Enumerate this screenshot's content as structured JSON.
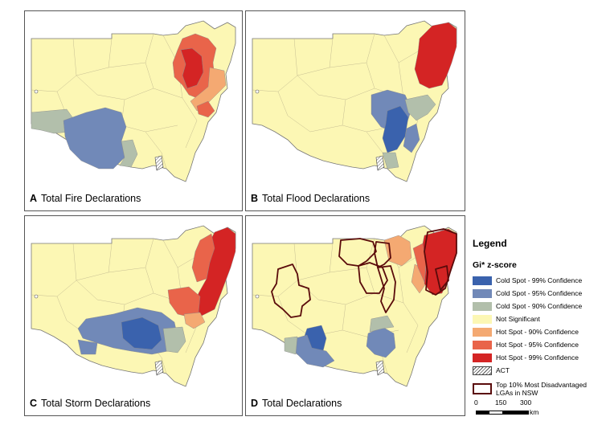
{
  "panels": [
    {
      "letter": "A",
      "caption": "Total Fire Declarations"
    },
    {
      "letter": "B",
      "caption": "Total Flood Declarations"
    },
    {
      "letter": "C",
      "caption": "Total Storm Declarations"
    },
    {
      "letter": "D",
      "caption": "Total Declarations"
    }
  ],
  "legend": {
    "title": "Legend",
    "subtitle": "Gi* z-score",
    "items": [
      {
        "label": "Cold Spot - 99% Confidence",
        "color": "#3a62ad"
      },
      {
        "label": "Cold Spot - 95% Confidence",
        "color": "#7189b8"
      },
      {
        "label": "Cold Spot - 90% Confidence",
        "color": "#b2bfab"
      },
      {
        "label": "Not Significant",
        "color": "#fcf7b4"
      },
      {
        "label": "Hot Spot - 90% Confidence",
        "color": "#f4a972"
      },
      {
        "label": "Hot Spot - 95% Confidence",
        "color": "#e9644a"
      },
      {
        "label": "Hot Spot - 99% Confidence",
        "color": "#d42424"
      },
      {
        "label": "ACT",
        "color": "hatch"
      },
      {
        "label": "Top 10% Most Disadvantaged LGAs in NSW",
        "color": "#5a0b0b"
      }
    ]
  },
  "scale": {
    "ticks": [
      "0",
      "150",
      "300"
    ],
    "unit": "km"
  }
}
